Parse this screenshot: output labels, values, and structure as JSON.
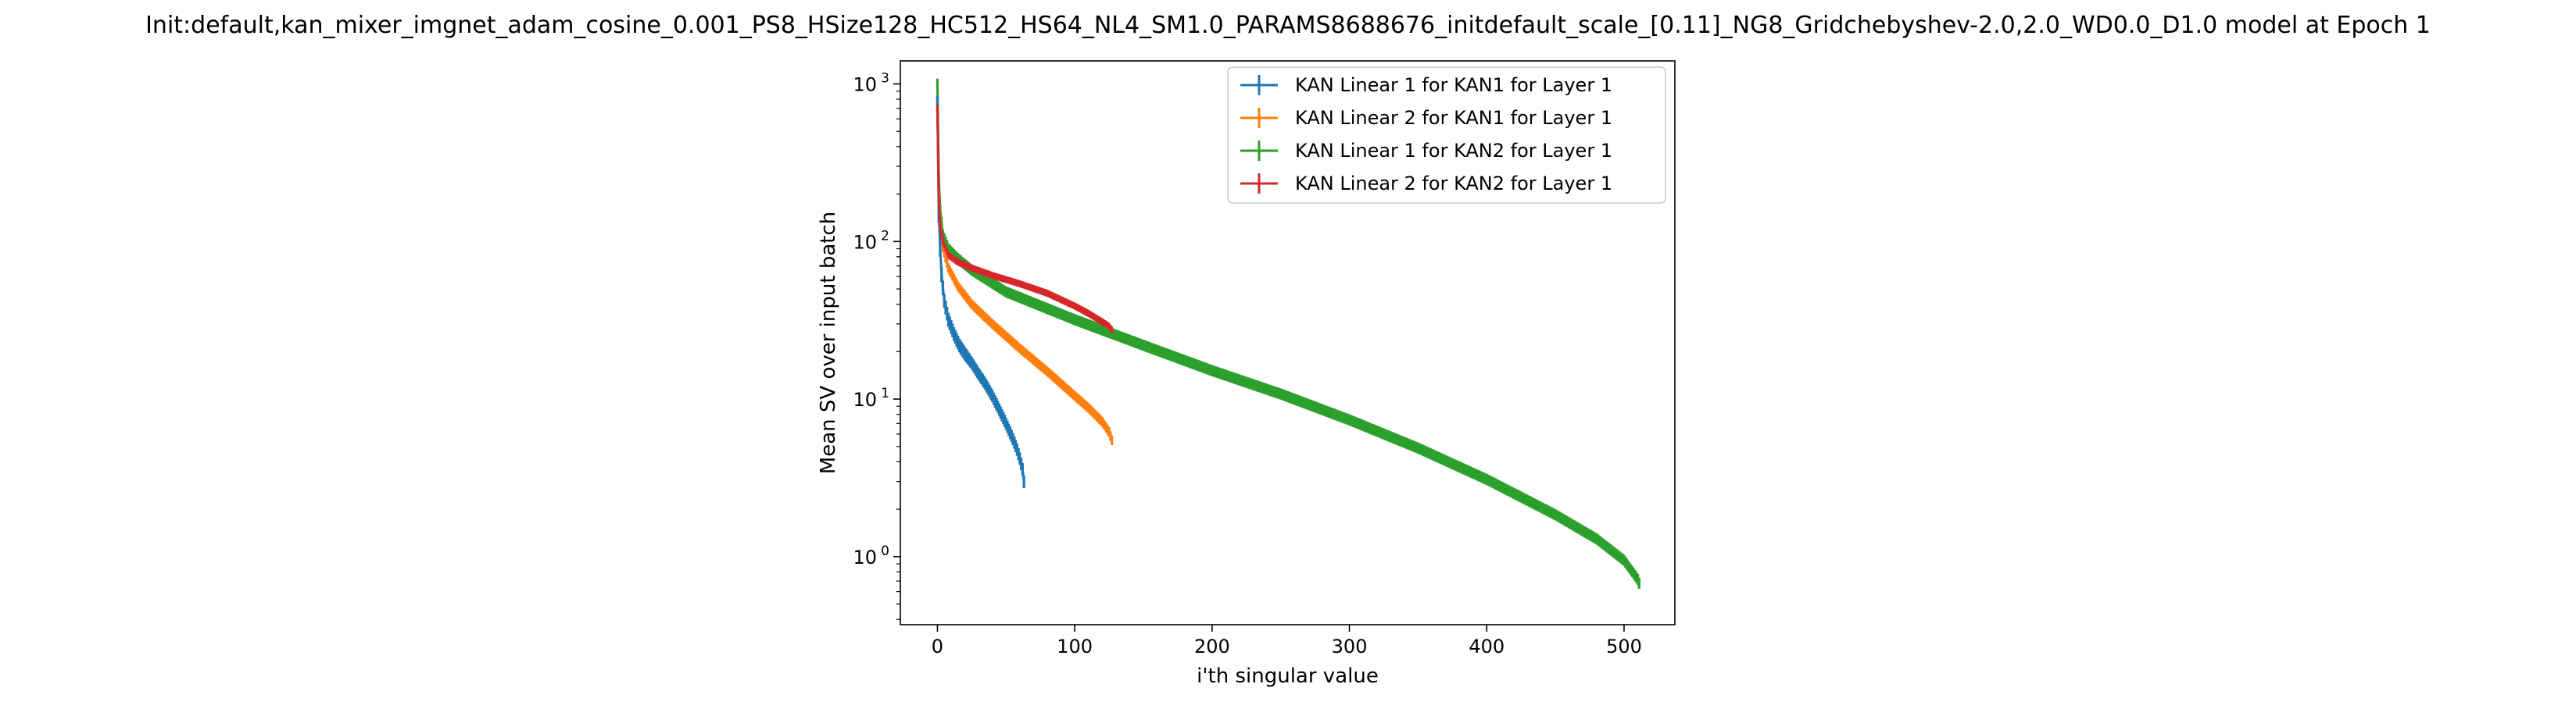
{
  "chart_data": {
    "type": "line",
    "title": "Init:default,kan_mixer_imgnet_adam_cosine_0.001_PS8_HSize128_HC512_HS64_NL4_SM1.0_PARAMS8688676_initdefault_scale_[0.11]_NG8_Gridchebyshev-2.0,2.0_WD0.0_D1.0 model at Epoch 1",
    "xlabel": "i'th singular value",
    "ylabel": "Mean SV over input batch",
    "xlim": [
      -27,
      537
    ],
    "ylim": [
      0.37,
      1400
    ],
    "yscale": "log",
    "grid": false,
    "legend_position": "top-right",
    "x_ticks": [
      0,
      100,
      200,
      300,
      400,
      500
    ],
    "x_tick_labels": [
      "0",
      "100",
      "200",
      "300",
      "400",
      "500"
    ],
    "y_ticks": [
      1,
      10,
      100,
      1000
    ],
    "y_tick_labels": [
      "10",
      "10",
      "10",
      "10"
    ],
    "y_tick_exponents": [
      "0",
      "1",
      "2",
      "3"
    ],
    "series": [
      {
        "name": "KAN Linear 1 for KAN1 for Layer 1",
        "color": "#1f77b4",
        "n": 64,
        "x": [
          0,
          1,
          2,
          3,
          5,
          8,
          12,
          16,
          20,
          25,
          30,
          35,
          40,
          45,
          50,
          55,
          58,
          60,
          62,
          63
        ],
        "y": [
          750,
          150,
          90,
          62,
          42,
          32,
          26,
          22,
          19.5,
          17,
          14.5,
          12.5,
          10.5,
          8.6,
          7,
          5.6,
          4.8,
          4.2,
          3.6,
          3.0
        ],
        "err": [
          0.12,
          0.12,
          0.11,
          0.11,
          0.1,
          0.1,
          0.1,
          0.1,
          0.1,
          0.09,
          0.09,
          0.09,
          0.09,
          0.09,
          0.09,
          0.09,
          0.09,
          0.09,
          0.09,
          0.09
        ]
      },
      {
        "name": "KAN Linear 2 for KAN1 for Layer 1",
        "color": "#ff7f0e",
        "n": 128,
        "x": [
          0,
          1,
          2,
          4,
          8,
          15,
          25,
          40,
          60,
          80,
          100,
          110,
          120,
          125,
          127
        ],
        "y": [
          760,
          200,
          130,
          92,
          68,
          52,
          40,
          30,
          21,
          15,
          10.5,
          8.8,
          7.2,
          6.2,
          5.5
        ],
        "err": [
          0.07,
          0.07,
          0.07,
          0.07,
          0.07,
          0.07,
          0.07,
          0.07,
          0.07,
          0.07,
          0.07,
          0.07,
          0.07,
          0.07,
          0.07
        ]
      },
      {
        "name": "KAN Linear 1 for KAN2 for Layer 1",
        "color": "#2ca02c",
        "n": 512,
        "x": [
          0,
          1,
          2,
          4,
          8,
          15,
          25,
          50,
          100,
          150,
          200,
          250,
          300,
          350,
          400,
          450,
          480,
          500,
          510,
          511
        ],
        "y": [
          1000,
          250,
          160,
          110,
          90,
          78,
          66,
          48,
          32,
          22,
          15.2,
          10.8,
          7.4,
          4.9,
          3.1,
          1.85,
          1.3,
          0.95,
          0.72,
          0.68
        ],
        "err": [
          0.08,
          0.08,
          0.08,
          0.08,
          0.08,
          0.08,
          0.08,
          0.08,
          0.08,
          0.08,
          0.08,
          0.08,
          0.08,
          0.08,
          0.08,
          0.08,
          0.08,
          0.08,
          0.08,
          0.08
        ]
      },
      {
        "name": "KAN Linear 2 for KAN2 for Layer 1",
        "color": "#d62728",
        "n": 128,
        "x": [
          0,
          1,
          2,
          4,
          8,
          15,
          25,
          40,
          60,
          80,
          100,
          110,
          120,
          125,
          127
        ],
        "y": [
          700,
          180,
          125,
          100,
          82,
          74,
          68,
          61,
          54,
          47,
          39,
          35,
          31,
          29,
          27.5
        ],
        "err": [
          0.05,
          0.05,
          0.05,
          0.05,
          0.05,
          0.05,
          0.05,
          0.05,
          0.05,
          0.05,
          0.05,
          0.05,
          0.05,
          0.05,
          0.05
        ]
      }
    ]
  }
}
